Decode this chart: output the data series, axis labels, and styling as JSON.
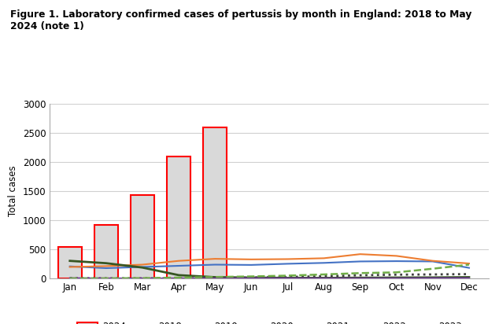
{
  "title_line1": "Figure 1. Laboratory confirmed cases of pertussis by month in England: 2018 to May",
  "title_line2": "2024 (note 1)",
  "ylabel": "Total cases",
  "months": [
    "Jan",
    "Feb",
    "Mar",
    "Apr",
    "May",
    "Jun",
    "Jul",
    "Aug",
    "Sep",
    "Oct",
    "Nov",
    "Dec"
  ],
  "ylim": [
    0,
    3000
  ],
  "yticks": [
    0,
    500,
    1000,
    1500,
    2000,
    2500,
    3000
  ],
  "bars_2024": [
    550,
    920,
    1430,
    2100,
    2590,
    null,
    null,
    null,
    null,
    null,
    null,
    null
  ],
  "line_2018": [
    210,
    180,
    200,
    220,
    240,
    235,
    255,
    270,
    295,
    300,
    295,
    185
  ],
  "line_2019": [
    200,
    215,
    240,
    305,
    340,
    330,
    335,
    350,
    420,
    390,
    305,
    260
  ],
  "line_2020": [
    305,
    265,
    190,
    60,
    25,
    18,
    12,
    12,
    15,
    18,
    20,
    25
  ],
  "line_2021": [
    8,
    5,
    5,
    5,
    8,
    18,
    28,
    42,
    58,
    68,
    72,
    78
  ],
  "line_2022": [
    8,
    5,
    5,
    5,
    5,
    5,
    5,
    5,
    5,
    5,
    8,
    8
  ],
  "line_2023": [
    5,
    5,
    8,
    18,
    28,
    38,
    52,
    72,
    95,
    108,
    170,
    240
  ],
  "bar_color": "#d9d9d9",
  "bar_edge_color": "#ff0000",
  "color_2018": "#4472c4",
  "color_2019": "#ed7d31",
  "color_2020": "#375623",
  "color_2021": "#404040",
  "color_2022": "#7030a0",
  "color_2023": "#70ad47",
  "background_color": "#ffffff",
  "plot_bg_color": "#ffffff",
  "grid_color": "#d0d0d0"
}
